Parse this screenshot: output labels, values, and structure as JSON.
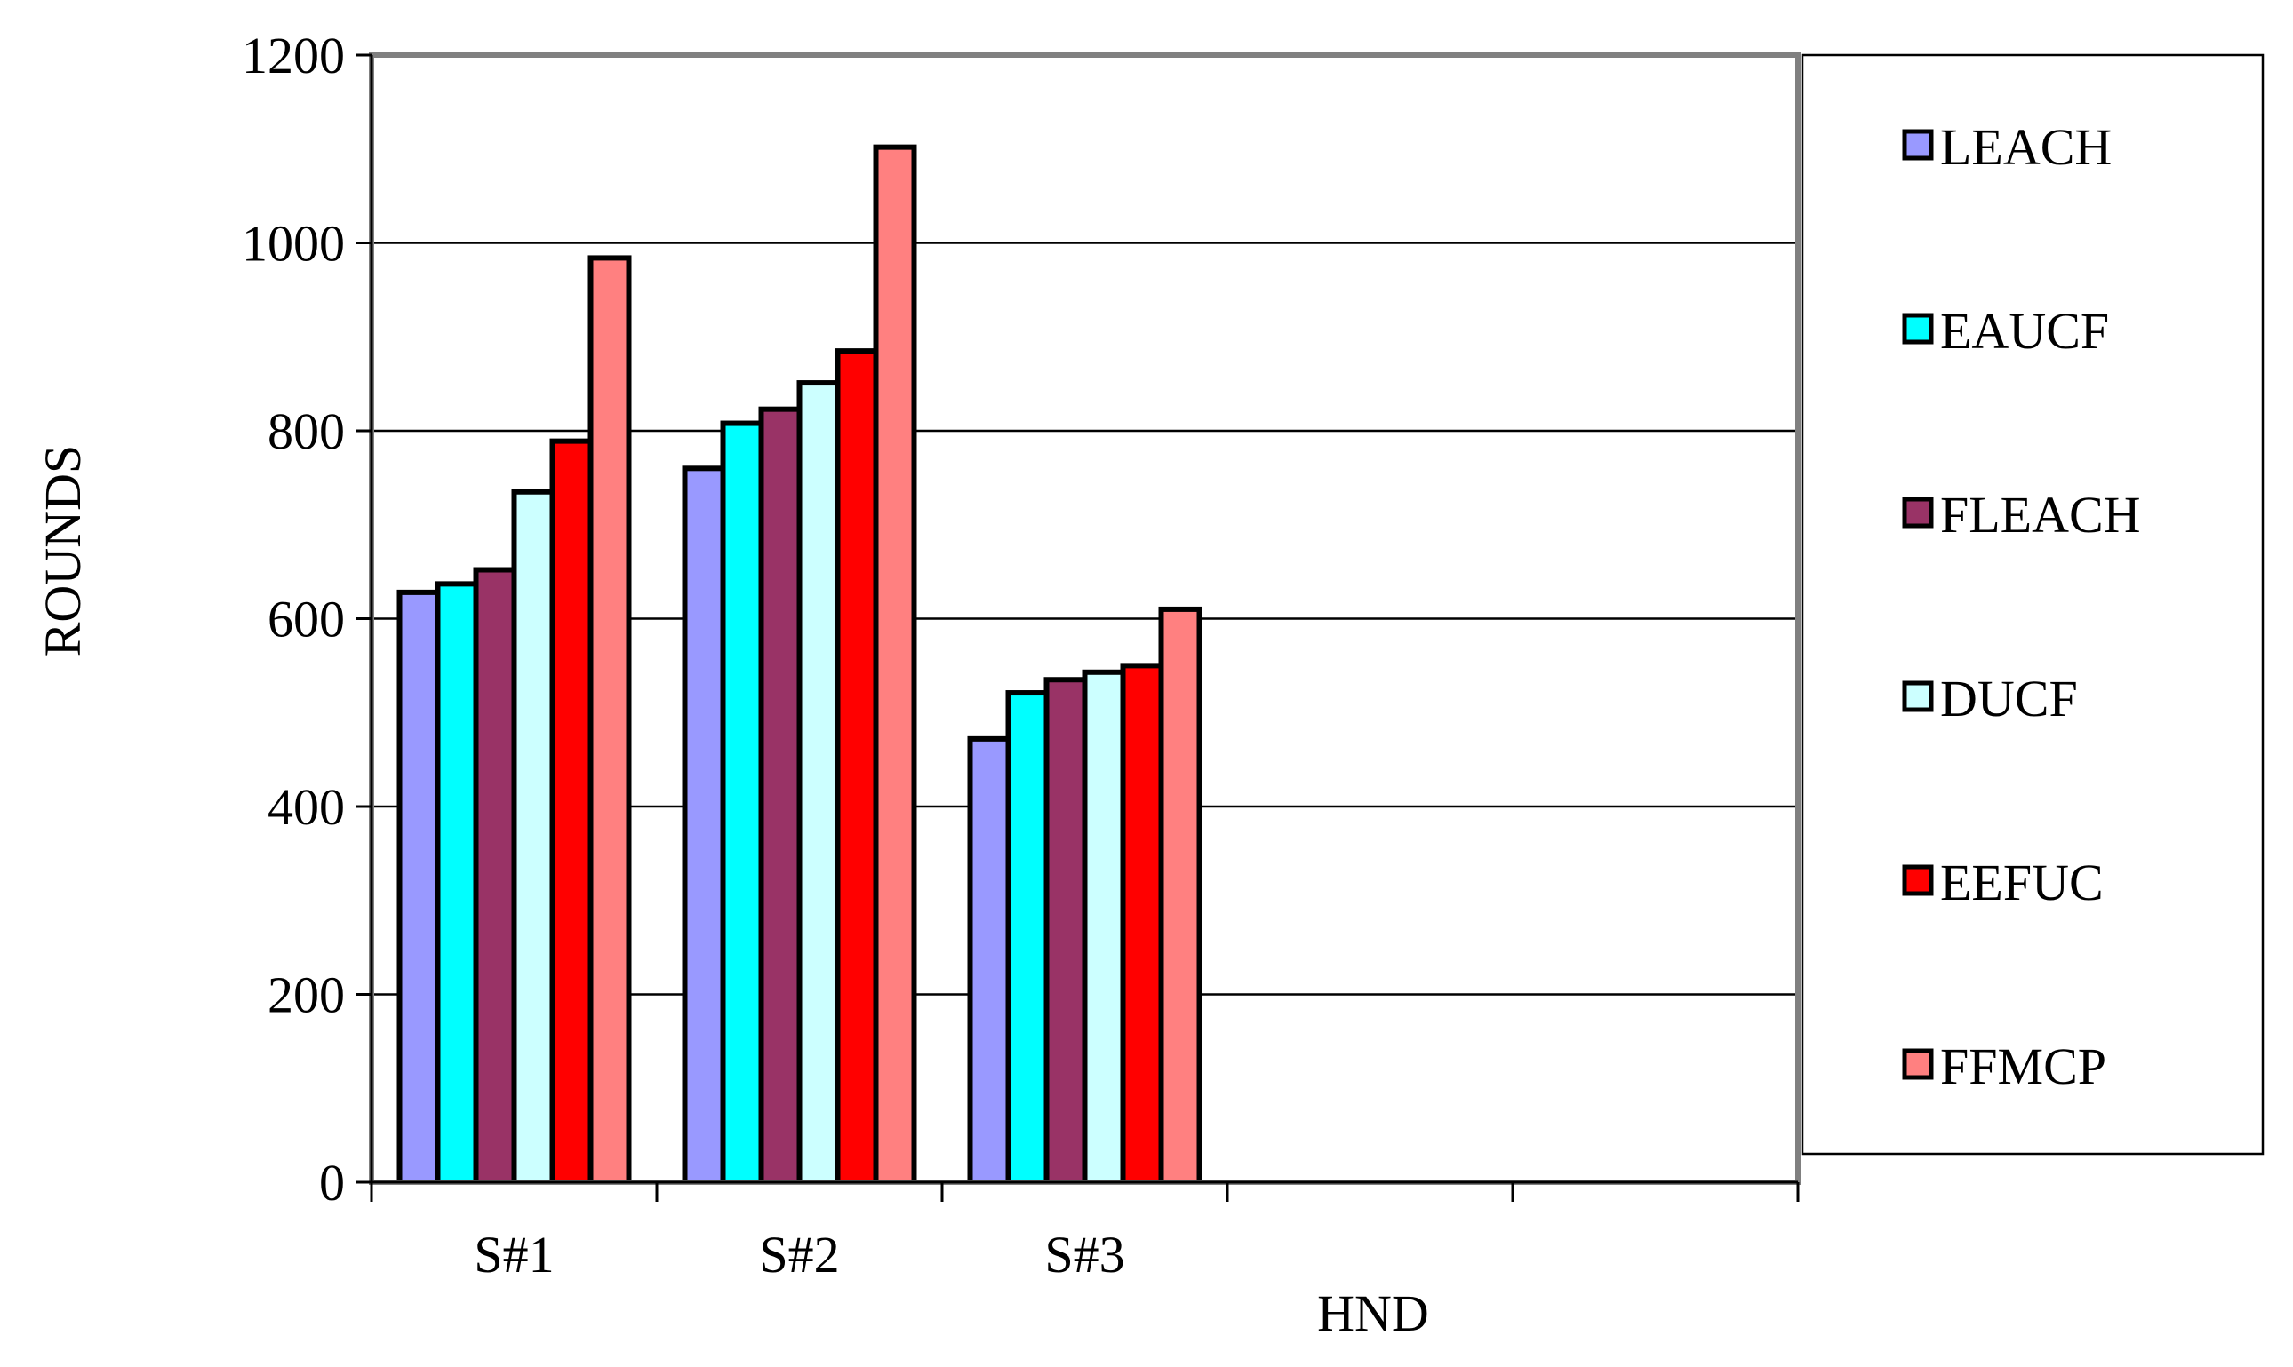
{
  "chart_data": {
    "type": "bar",
    "categories": [
      "S#1",
      "S#2",
      "S#3",
      "",
      ""
    ],
    "series": [
      {
        "name": "LEACH",
        "color": "#9999ff",
        "values": [
          628,
          760,
          472,
          null,
          null
        ]
      },
      {
        "name": "EAUCF",
        "color": "#00ffff",
        "values": [
          637,
          808,
          521,
          null,
          null
        ]
      },
      {
        "name": "FLEACH",
        "color": "#993366",
        "values": [
          652,
          823,
          535,
          null,
          null
        ]
      },
      {
        "name": "DUCF",
        "color": "#ccffff",
        "values": [
          735,
          851,
          543,
          null,
          null
        ]
      },
      {
        "name": "EEFUC",
        "color": "#ff0000",
        "values": [
          789,
          885,
          550,
          null,
          null
        ]
      },
      {
        "name": "FFMCP",
        "color": "#ff8080",
        "values": [
          984,
          1102,
          610,
          null,
          null
        ]
      }
    ],
    "title": "",
    "xlabel": "HND",
    "ylabel": "ROUNDS",
    "ylim": [
      0,
      1200
    ],
    "yticks": [
      "0",
      "200",
      "400",
      "600",
      "800",
      "1000",
      "1200"
    ],
    "grid": true,
    "legend": "right"
  }
}
